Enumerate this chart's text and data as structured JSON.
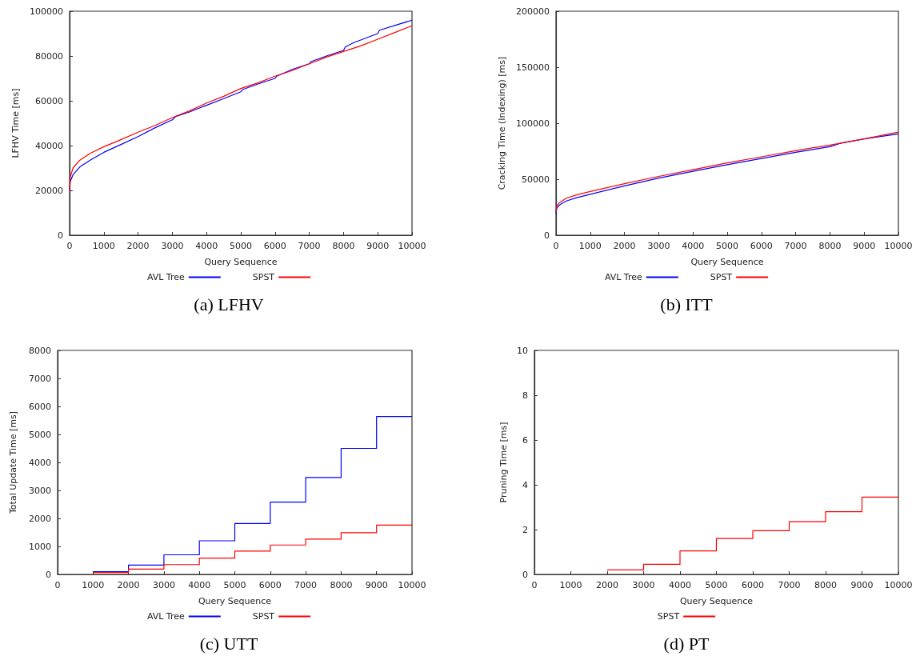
{
  "chart_data": [
    {
      "type": "line",
      "title": "(a) LFHV",
      "xlabel": "Query Sequence",
      "ylabel": "LFHV Time [ms]",
      "xlim": [
        0,
        10000
      ],
      "xticks": [
        0,
        1000,
        2000,
        3000,
        4000,
        5000,
        6000,
        7000,
        8000,
        9000,
        10000
      ],
      "ylim": [
        0,
        100000
      ],
      "yticks": [
        0,
        20000,
        40000,
        60000,
        80000,
        100000
      ],
      "legend": "bottom",
      "series": [
        {
          "name": "AVL Tree",
          "color": "#0000ff",
          "x": [
            0,
            20,
            100,
            300,
            600,
            1000,
            1500,
            2000,
            2500,
            3000,
            3100,
            3500,
            4000,
            4500,
            5000,
            5050,
            5500,
            6000,
            6050,
            6500,
            7000,
            7050,
            7500,
            8000,
            8050,
            8300,
            9000,
            9050,
            10000
          ],
          "values": [
            20000,
            24000,
            27000,
            30500,
            33500,
            37000,
            40500,
            44000,
            48000,
            51500,
            53000,
            55000,
            58000,
            61000,
            64000,
            65000,
            67500,
            70000,
            71000,
            74000,
            76500,
            77500,
            80000,
            82500,
            84000,
            86000,
            90000,
            91500,
            96000
          ]
        },
        {
          "name": "SPST",
          "color": "#ff0000",
          "x": [
            0,
            20,
            100,
            300,
            600,
            1000,
            1400,
            2000,
            2500,
            3000,
            3500,
            4000,
            4500,
            5000,
            5500,
            6000,
            6500,
            7000,
            7500,
            8000,
            8500,
            9000,
            9500,
            10000
          ],
          "values": [
            20000,
            26000,
            30000,
            33500,
            36500,
            39500,
            42000,
            46000,
            49000,
            52500,
            55500,
            59000,
            62000,
            65500,
            68000,
            71000,
            73500,
            76500,
            79500,
            82000,
            84500,
            87500,
            90500,
            93500
          ]
        }
      ]
    },
    {
      "type": "line",
      "title": "(b) ITT",
      "xlabel": "Query Sequence",
      "ylabel": "Cracking Time (Indexing) [ms]",
      "xlim": [
        0,
        10000
      ],
      "xticks": [
        0,
        1000,
        2000,
        3000,
        4000,
        5000,
        6000,
        7000,
        8000,
        9000,
        10000
      ],
      "ylim": [
        0,
        200000
      ],
      "yticks": [
        0,
        50000,
        100000,
        150000,
        200000
      ],
      "legend": "bottom",
      "series": [
        {
          "name": "AVL Tree",
          "color": "#0000ff",
          "x": [
            0,
            20,
            100,
            300,
            600,
            1000,
            2000,
            3000,
            4000,
            5000,
            6000,
            7000,
            8000,
            8300,
            9000,
            10000
          ],
          "values": [
            19000,
            24000,
            27000,
            30500,
            33500,
            36500,
            44000,
            51000,
            57000,
            63000,
            68500,
            74000,
            79000,
            82000,
            86000,
            90500
          ]
        },
        {
          "name": "SPST",
          "color": "#ff0000",
          "x": [
            0,
            20,
            100,
            300,
            600,
            1000,
            2000,
            3000,
            4000,
            5000,
            6000,
            7000,
            8000,
            9000,
            10000
          ],
          "values": [
            21000,
            26000,
            29000,
            33000,
            36000,
            39000,
            46000,
            52500,
            58500,
            64500,
            70000,
            75500,
            80500,
            86000,
            92000
          ]
        }
      ]
    },
    {
      "type": "step",
      "title": "(c) UTT",
      "xlabel": "Query Sequence",
      "ylabel": "Total Update Time [ms]",
      "xlim": [
        0,
        10000
      ],
      "xticks": [
        0,
        1000,
        2000,
        3000,
        4000,
        5000,
        6000,
        7000,
        8000,
        9000,
        10000
      ],
      "ylim": [
        0,
        8000
      ],
      "yticks": [
        0,
        1000,
        2000,
        3000,
        4000,
        5000,
        6000,
        7000,
        8000
      ],
      "legend": "bottom",
      "series": [
        {
          "name": "AVL Tree",
          "color": "#0000ff",
          "x": [
            1000,
            2000,
            3000,
            4000,
            5000,
            6000,
            7000,
            8000,
            9000,
            10000
          ],
          "values": [
            100,
            330,
            700,
            1200,
            1820,
            2580,
            3460,
            4500,
            5640,
            5640
          ]
        },
        {
          "name": "SPST",
          "color": "#ff0000",
          "x": [
            1000,
            2000,
            3000,
            4000,
            5000,
            6000,
            7000,
            8000,
            9000,
            10000
          ],
          "values": [
            70,
            190,
            350,
            580,
            830,
            1050,
            1260,
            1490,
            1760,
            1760
          ]
        }
      ]
    },
    {
      "type": "step",
      "title": "(d) PT",
      "xlabel": "Query Sequence",
      "ylabel": "Pruning Time [ms]",
      "xlim": [
        0,
        10000
      ],
      "xticks": [
        0,
        1000,
        2000,
        3000,
        4000,
        5000,
        6000,
        7000,
        8000,
        9000,
        10000
      ],
      "ylim": [
        0,
        10
      ],
      "yticks": [
        0,
        2,
        4,
        6,
        8,
        10
      ],
      "legend": "bottom",
      "series": [
        {
          "name": "SPST",
          "color": "#ff0000",
          "x": [
            2000,
            3000,
            4000,
            5000,
            6000,
            7000,
            8000,
            9000,
            10000
          ],
          "values": [
            0.2,
            0.45,
            1.05,
            1.6,
            1.95,
            2.35,
            2.8,
            3.45,
            3.45
          ]
        }
      ]
    }
  ]
}
